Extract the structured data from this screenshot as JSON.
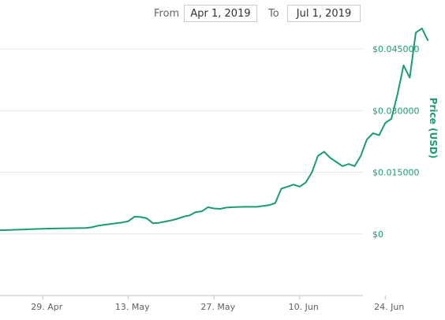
{
  "range_selector": {
    "from_label": "From",
    "from_value": "Apr 1, 2019",
    "to_label": "To",
    "to_value": "Jul 1, 2019"
  },
  "chart_data": {
    "type": "line",
    "title": "",
    "xlabel": "",
    "ylabel": "Price (USD)",
    "x_ticks": [
      "29. Apr",
      "13. May",
      "27. May",
      "10. Jun",
      "24. Jun"
    ],
    "x_tick_dates": [
      "2019-04-29",
      "2019-05-13",
      "2019-05-27",
      "2019-06-10",
      "2019-06-24"
    ],
    "xlim": [
      "2019-04-22",
      "2019-07-01"
    ],
    "y_ticks": [
      "$0",
      "$0.015000",
      "$0.030000",
      "$0.045000"
    ],
    "y_tick_values": [
      0,
      0.015,
      0.03,
      0.045
    ],
    "ylim": [
      -0.015,
      0.055
    ],
    "grid": true,
    "series_color": "#1a9b73",
    "series": [
      {
        "name": "",
        "points": [
          [
            "2019-04-22",
            0.0009
          ],
          [
            "2019-04-24",
            0.001
          ],
          [
            "2019-04-26",
            0.0011
          ],
          [
            "2019-04-28",
            0.0012
          ],
          [
            "2019-04-30",
            0.0013
          ],
          [
            "2019-05-02",
            0.00135
          ],
          [
            "2019-05-04",
            0.0014
          ],
          [
            "2019-05-06",
            0.00145
          ],
          [
            "2019-05-07",
            0.0016
          ],
          [
            "2019-05-08",
            0.002
          ],
          [
            "2019-05-09",
            0.0022
          ],
          [
            "2019-05-10",
            0.0024
          ],
          [
            "2019-05-11",
            0.0026
          ],
          [
            "2019-05-12",
            0.0028
          ],
          [
            "2019-05-13",
            0.0031
          ],
          [
            "2019-05-14",
            0.0042
          ],
          [
            "2019-05-15",
            0.0041
          ],
          [
            "2019-05-16",
            0.0038
          ],
          [
            "2019-05-17",
            0.0026
          ],
          [
            "2019-05-18",
            0.0027
          ],
          [
            "2019-05-19",
            0.003
          ],
          [
            "2019-05-20",
            0.0033
          ],
          [
            "2019-05-21",
            0.0037
          ],
          [
            "2019-05-22",
            0.0042
          ],
          [
            "2019-05-23",
            0.0045
          ],
          [
            "2019-05-24",
            0.0053
          ],
          [
            "2019-05-25",
            0.0055
          ],
          [
            "2019-05-26",
            0.0065
          ],
          [
            "2019-05-27",
            0.0062
          ],
          [
            "2019-05-28",
            0.0061
          ],
          [
            "2019-05-29",
            0.0064
          ],
          [
            "2019-05-30",
            0.0065
          ],
          [
            "2019-06-01",
            0.0066
          ],
          [
            "2019-06-03",
            0.0066
          ],
          [
            "2019-06-05",
            0.007
          ],
          [
            "2019-06-06",
            0.0075
          ],
          [
            "2019-06-07",
            0.011
          ],
          [
            "2019-06-08",
            0.0115
          ],
          [
            "2019-06-09",
            0.012
          ],
          [
            "2019-06-10",
            0.0115
          ],
          [
            "2019-06-11",
            0.0125
          ],
          [
            "2019-06-12",
            0.015
          ],
          [
            "2019-06-13",
            0.019
          ],
          [
            "2019-06-14",
            0.02
          ],
          [
            "2019-06-15",
            0.0185
          ],
          [
            "2019-06-16",
            0.0175
          ],
          [
            "2019-06-17",
            0.0165
          ],
          [
            "2019-06-18",
            0.017
          ],
          [
            "2019-06-19",
            0.0165
          ],
          [
            "2019-06-20",
            0.019
          ],
          [
            "2019-06-21",
            0.023
          ],
          [
            "2019-06-22",
            0.0245
          ],
          [
            "2019-06-23",
            0.024
          ],
          [
            "2019-06-24",
            0.027
          ],
          [
            "2019-06-25",
            0.028
          ],
          [
            "2019-06-26",
            0.034
          ],
          [
            "2019-06-27",
            0.041
          ],
          [
            "2019-06-28",
            0.038
          ],
          [
            "2019-06-29",
            0.049
          ],
          [
            "2019-06-30",
            0.05
          ],
          [
            "2019-07-01",
            0.047
          ]
        ]
      }
    ]
  }
}
